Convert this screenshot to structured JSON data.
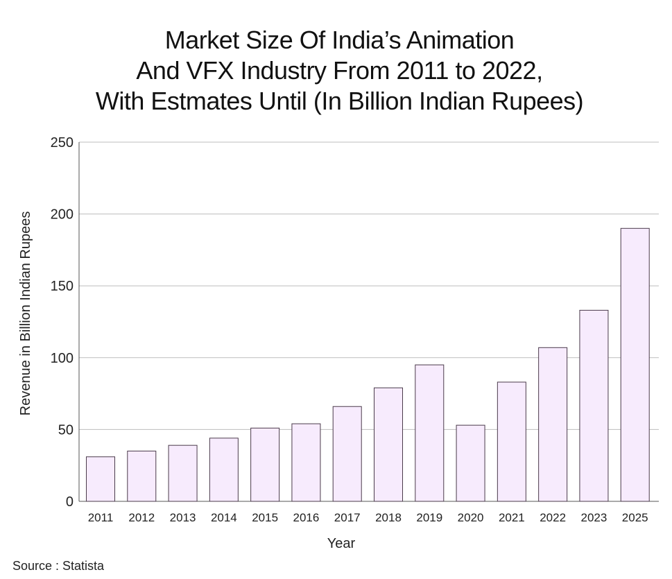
{
  "chart_data": {
    "type": "bar",
    "title_lines": [
      "Market Size Of India’s Animation",
      "And VFX Industry From 2011 to 2022,",
      "With Estmates Until (In Billion Indian Rupees)"
    ],
    "categories": [
      "2011",
      "2012",
      "2013",
      "2014",
      "2015",
      "2016",
      "2017",
      "2018",
      "2019",
      "2020",
      "2021",
      "2022",
      "2023",
      "2025"
    ],
    "values": [
      31,
      35,
      39,
      44,
      51,
      54,
      66,
      79,
      95,
      53,
      83,
      107,
      133,
      190
    ],
    "xlabel": "Year",
    "ylabel": "Revenue in Billion Indian Rupees",
    "ylim": [
      0,
      250
    ],
    "yticks": [
      0,
      50,
      100,
      150,
      200,
      250
    ],
    "grid": true,
    "bar_color": "#f7ebfd",
    "bar_edge_color": "#4a3a4a"
  },
  "source": "Source : Statista"
}
